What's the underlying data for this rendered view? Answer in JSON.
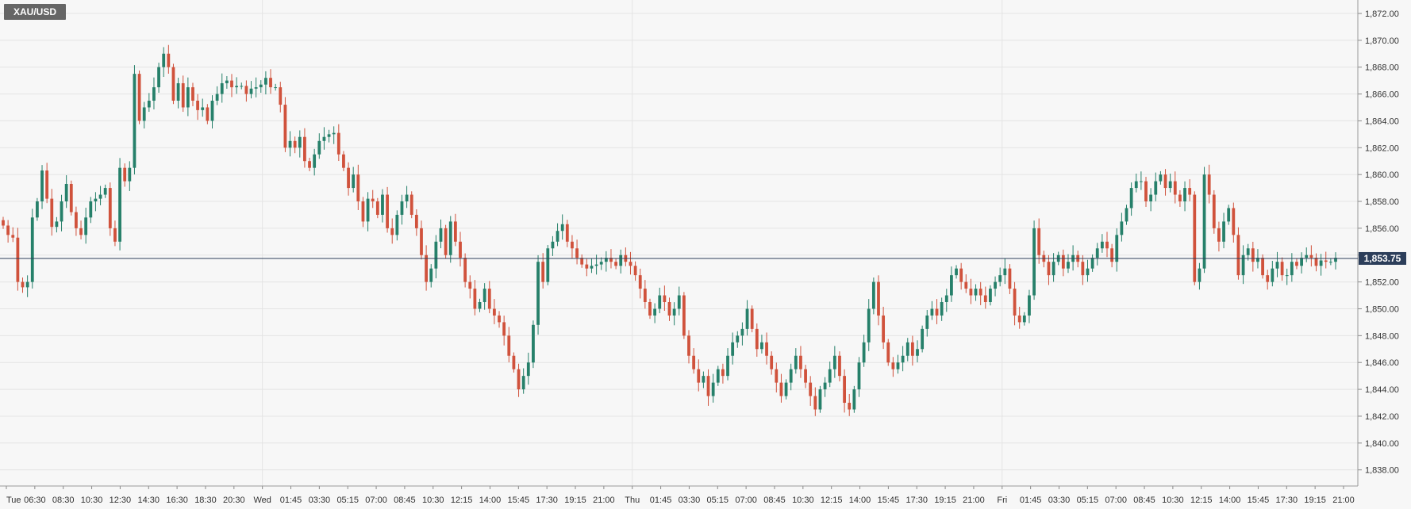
{
  "chart_data": {
    "type": "candlestick",
    "symbol": "XAU/USD",
    "ylim": [
      1836.8,
      1873.0
    ],
    "yticks": [
      "1,838.00",
      "1,840.00",
      "1,842.00",
      "1,844.00",
      "1,846.00",
      "1,848.00",
      "1,850.00",
      "1,852.00",
      "1,854.00",
      "1,856.00",
      "1,858.00",
      "1,860.00",
      "1,862.00",
      "1,864.00",
      "1,866.00",
      "1,868.00",
      "1,870.00",
      "1,872.00"
    ],
    "xticks": [
      "Tue",
      "06:30",
      "08:30",
      "10:30",
      "12:30",
      "14:30",
      "16:30",
      "18:30",
      "20:30",
      "Wed",
      "01:45",
      "03:30",
      "05:15",
      "07:00",
      "08:45",
      "10:30",
      "12:15",
      "14:00",
      "15:45",
      "17:30",
      "19:15",
      "21:00",
      "Thu",
      "01:45",
      "03:30",
      "05:15",
      "07:00",
      "08:45",
      "10:30",
      "12:15",
      "14:00",
      "15:45",
      "17:30",
      "19:15",
      "21:00",
      "Fri",
      "01:45",
      "03:30",
      "05:15",
      "07:00",
      "08:45",
      "10:30",
      "12:15",
      "14:00",
      "15:45",
      "17:30",
      "19:15",
      "21:00"
    ],
    "current_price": 1853.75,
    "current_price_label": "1,853.75",
    "up_color": "#26806a",
    "down_color": "#d0523c",
    "closes": [
      1856.2,
      1855.5,
      1855.3,
      1852.0,
      1851.6,
      1852.0,
      1856.8,
      1858.0,
      1860.3,
      1858.2,
      1856.1,
      1856.5,
      1858.0,
      1859.3,
      1857.2,
      1856.0,
      1855.5,
      1856.8,
      1858.0,
      1858.2,
      1858.5,
      1859.0,
      1856.0,
      1855.0,
      1860.5,
      1859.5,
      1860.5,
      1867.5,
      1864.0,
      1865.0,
      1865.5,
      1866.5,
      1868.0,
      1869.0,
      1868.0,
      1865.5,
      1866.8,
      1865.0,
      1866.5,
      1865.5,
      1864.8,
      1865.0,
      1864.0,
      1865.5,
      1866.0,
      1866.8,
      1867.0,
      1866.5,
      1866.6,
      1866.6,
      1866.0,
      1866.4,
      1866.5,
      1866.7,
      1867.2,
      1866.5,
      1866.5,
      1865.2,
      1862.0,
      1862.5,
      1862.0,
      1862.8,
      1861.0,
      1860.5,
      1861.5,
      1862.5,
      1862.8,
      1863.0,
      1863.1,
      1861.5,
      1860.5,
      1859.0,
      1860.0,
      1858.0,
      1856.5,
      1858.2,
      1858.0,
      1857.0,
      1858.5,
      1856.0,
      1855.5,
      1857.0,
      1858.0,
      1858.5,
      1857.0,
      1856.0,
      1854.0,
      1852.0,
      1853.0,
      1855.0,
      1856.0,
      1854.0,
      1856.5,
      1855.0,
      1853.8,
      1852.0,
      1851.5,
      1850.0,
      1850.5,
      1851.5,
      1850.0,
      1849.5,
      1849.0,
      1848.0,
      1846.5,
      1845.5,
      1844.0,
      1845.0,
      1846.0,
      1848.8,
      1853.5,
      1852.0,
      1854.5,
      1855.0,
      1855.8,
      1856.3,
      1855.0,
      1854.5,
      1853.8,
      1853.3,
      1853.0,
      1853.2,
      1853.3,
      1853.5,
      1853.8,
      1853.5,
      1853.2,
      1854.0,
      1853.5,
      1853.2,
      1852.5,
      1851.5,
      1850.5,
      1849.5,
      1850.0,
      1851.0,
      1850.5,
      1849.5,
      1850.0,
      1851.0,
      1848.0,
      1846.5,
      1845.5,
      1844.5,
      1845.0,
      1843.5,
      1844.5,
      1845.5,
      1845.0,
      1846.5,
      1847.5,
      1848.0,
      1848.5,
      1850.0,
      1848.5,
      1847.0,
      1847.5,
      1846.5,
      1845.5,
      1844.5,
      1843.5,
      1844.5,
      1845.5,
      1846.5,
      1845.5,
      1844.5,
      1843.5,
      1842.5,
      1844.0,
      1844.5,
      1845.5,
      1846.5,
      1845.0,
      1843.0,
      1842.5,
      1844.0,
      1846.0,
      1847.5,
      1850.0,
      1852.0,
      1849.5,
      1847.5,
      1846.0,
      1845.5,
      1846.0,
      1846.5,
      1847.5,
      1846.5,
      1847.0,
      1848.5,
      1849.5,
      1850.0,
      1849.5,
      1850.5,
      1851.0,
      1852.5,
      1853.0,
      1852.0,
      1851.5,
      1851.0,
      1851.5,
      1851.0,
      1850.5,
      1851.5,
      1852.0,
      1852.5,
      1853.0,
      1851.5,
      1849.5,
      1849.0,
      1849.5,
      1851.0,
      1856.0,
      1854.0,
      1853.5,
      1852.5,
      1853.5,
      1854.0,
      1853.0,
      1853.5,
      1854.0,
      1853.5,
      1852.5,
      1853.0,
      1853.8,
      1854.5,
      1855.0,
      1854.5,
      1853.5,
      1855.5,
      1856.5,
      1857.5,
      1859.0,
      1859.5,
      1859.5,
      1858.0,
      1858.5,
      1859.5,
      1860.0,
      1859.0,
      1859.5,
      1858.5,
      1858.0,
      1859.0,
      1858.5,
      1852.0,
      1853.0,
      1860.0,
      1858.5,
      1856.0,
      1855.0,
      1856.5,
      1857.5,
      1855.5,
      1852.5,
      1854.0,
      1854.5,
      1853.5,
      1853.8,
      1852.5,
      1852.0,
      1853.0,
      1853.5,
      1852.5,
      1852.5,
      1853.5,
      1853.2,
      1853.8,
      1854.0,
      1853.8,
      1853.2,
      1853.6,
      1853.5,
      1853.5,
      1853.8
    ]
  }
}
